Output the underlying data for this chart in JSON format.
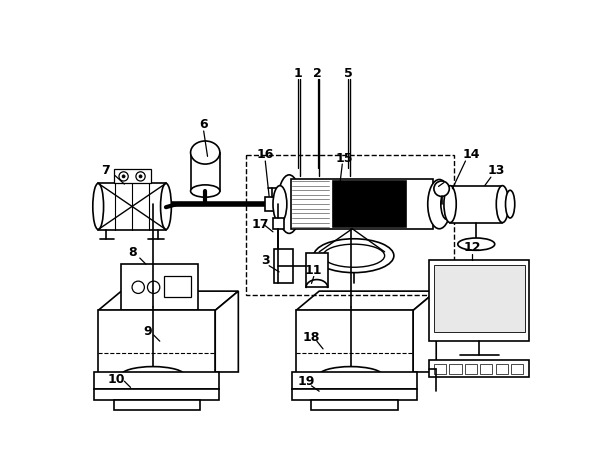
{
  "fig_width": 6.01,
  "fig_height": 4.69,
  "dpi": 100,
  "bg_color": "#ffffff",
  "lc": "#000000",
  "lw": 1.2
}
